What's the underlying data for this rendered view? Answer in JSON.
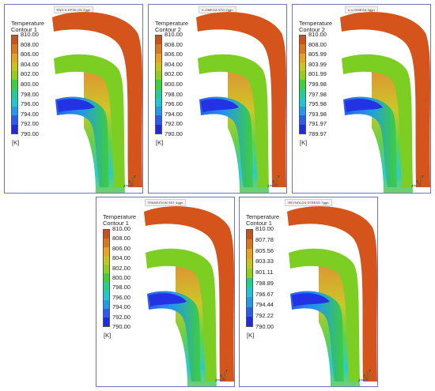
{
  "panels": [
    {
      "case_label": "RNG K EPSILON 2ggn",
      "legend_title": [
        "Temperature",
        "Contour 1"
      ],
      "ticks": [
        "810.00",
        "808.00",
        "806.00",
        "804.00",
        "802.00",
        "800.00",
        "798.00",
        "796.00",
        "794.00",
        "792.00",
        "790.00"
      ],
      "unit": "[K]"
    },
    {
      "case_label": "K-OMEGA STD 2ggn",
      "legend_title": [
        "Temperature",
        "Contour 2"
      ],
      "ticks": [
        "810.00",
        "808.00",
        "806.00",
        "804.00",
        "802.00",
        "800.00",
        "798.00",
        "796.00",
        "794.00",
        "792.00",
        "790.00"
      ],
      "unit": "[K]"
    },
    {
      "case_label": "k-ω OMEGA 3ggn",
      "legend_title": [
        "Temperature",
        "Contour 2"
      ],
      "ticks": [
        "810.00",
        "808.00",
        "805.99",
        "803.99",
        "801.99",
        "799.98",
        "797.98",
        "795.98",
        "793.98",
        "791.97",
        "789.97"
      ],
      "unit": "[K]"
    },
    {
      "case_label": "TRANSITION SST 4ggn",
      "legend_title": [
        "Temperature",
        "Contour 1"
      ],
      "ticks": [
        "810.00",
        "808.00",
        "806.00",
        "804.00",
        "802.00",
        "800.00",
        "798.00",
        "796.00",
        "794.00",
        "792.00",
        "790.00"
      ],
      "unit": "[K]"
    },
    {
      "case_label": "REYNOLDS STRESS 7ggn",
      "legend_title": [
        "Temperature",
        "Contour 1"
      ],
      "ticks": [
        "810.00",
        "807.78",
        "805.56",
        "803.33",
        "801.11",
        "798.89",
        "796.67",
        "794.44",
        "792.22",
        "790.00"
      ],
      "unit": "[K]"
    }
  ],
  "axes_labels": {
    "y": "Y",
    "z": "Z",
    "x": "X"
  },
  "colors": {
    "scale": [
      "#c8521a",
      "#d9761e",
      "#e8a21e",
      "#c9c41c",
      "#8fd01e",
      "#3fcf3a",
      "#22cf8e",
      "#1fc7d2",
      "#229ae8",
      "#2a5cf0",
      "#1f2be0"
    ],
    "panel_border": "#6b78b8"
  }
}
